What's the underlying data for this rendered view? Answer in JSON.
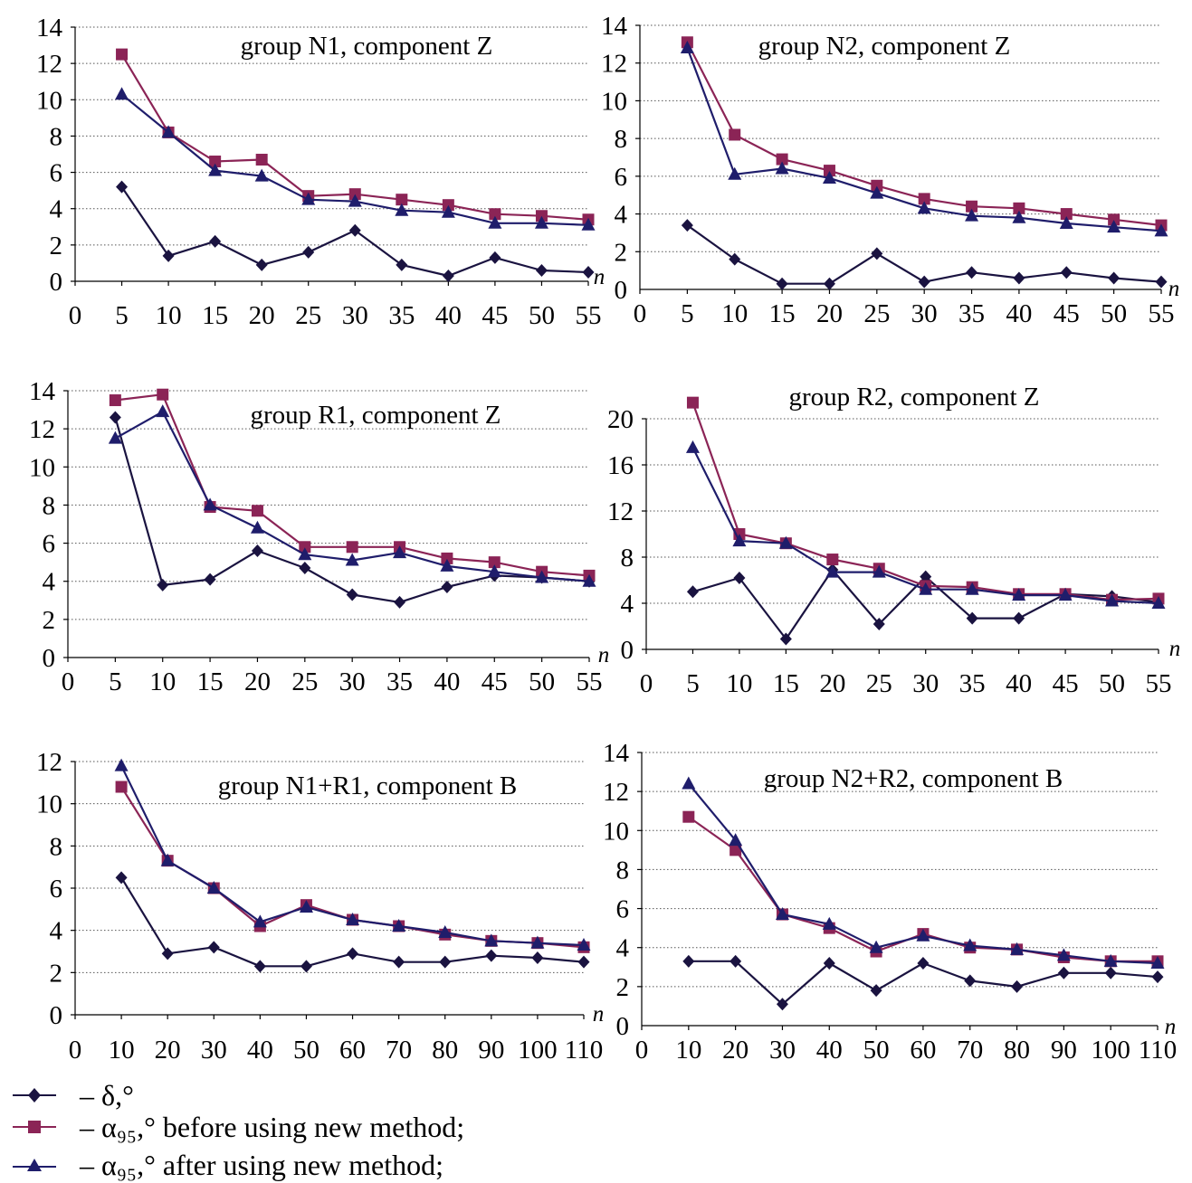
{
  "colors": {
    "delta": "#1a1340",
    "before": "#8b2456",
    "after": "#1f1d6b",
    "grid": "#555555",
    "axis": "#000000"
  },
  "legend": {
    "delta_label": "– δ,°",
    "before_label": "– α₉₅,° before using new method;",
    "after_label": "– α₉₅,° after using new method;"
  },
  "chart_data": [
    {
      "type": "line",
      "title": "group N1, component Z",
      "xlabel": "n",
      "ylabel": "",
      "xlim": [
        0,
        55
      ],
      "ylim": [
        0,
        14
      ],
      "xticks": [
        0,
        5,
        10,
        15,
        20,
        25,
        30,
        35,
        40,
        45,
        50,
        55
      ],
      "yticks": [
        0,
        2,
        4,
        6,
        8,
        10,
        12,
        14
      ],
      "grid": "horizontal dotted",
      "x": [
        5,
        10,
        15,
        20,
        25,
        30,
        35,
        40,
        45,
        50,
        55
      ],
      "series": [
        {
          "name": "δ,°",
          "marker": "diamond",
          "values": [
            5.2,
            1.4,
            2.2,
            0.9,
            1.6,
            2.8,
            0.9,
            0.3,
            1.3,
            0.6,
            0.5
          ]
        },
        {
          "name": "α₉₅,° before using new method",
          "marker": "square",
          "values": [
            12.5,
            8.2,
            6.6,
            6.7,
            4.7,
            4.8,
            4.5,
            4.2,
            3.7,
            3.6,
            3.4
          ]
        },
        {
          "name": "α₉₅,° after using new method",
          "marker": "triangle",
          "values": [
            10.3,
            8.2,
            6.1,
            5.8,
            4.5,
            4.4,
            3.9,
            3.8,
            3.2,
            3.2,
            3.1
          ]
        }
      ]
    },
    {
      "type": "line",
      "title": "group N2, component Z",
      "xlabel": "n",
      "ylabel": "",
      "xlim": [
        0,
        55
      ],
      "ylim": [
        0,
        14
      ],
      "xticks": [
        0,
        5,
        10,
        15,
        20,
        25,
        30,
        35,
        40,
        45,
        50,
        55
      ],
      "yticks": [
        2,
        4,
        6,
        8,
        10,
        12,
        14
      ],
      "bottom_tick_label": "0",
      "grid": "horizontal dotted",
      "x": [
        5,
        10,
        15,
        20,
        25,
        30,
        35,
        40,
        45,
        50,
        55
      ],
      "series": [
        {
          "name": "δ,°",
          "marker": "diamond",
          "values": [
            3.4,
            1.6,
            0.3,
            0.3,
            1.9,
            0.4,
            0.9,
            0.6,
            0.9,
            0.6,
            0.4
          ]
        },
        {
          "name": "α₉₅,° before using new method",
          "marker": "square",
          "values": [
            13.1,
            8.2,
            6.9,
            6.3,
            5.5,
            4.8,
            4.4,
            4.3,
            4.0,
            3.7,
            3.4
          ]
        },
        {
          "name": "α₉₅,° after using new method",
          "marker": "triangle",
          "values": [
            12.8,
            6.1,
            6.4,
            5.9,
            5.1,
            4.3,
            3.9,
            3.8,
            3.5,
            3.3,
            3.1
          ]
        }
      ]
    },
    {
      "type": "line",
      "title": "group R1, component Z",
      "xlabel": "n",
      "ylabel": "",
      "xlim": [
        0,
        55
      ],
      "ylim": [
        0,
        14
      ],
      "xticks": [
        0,
        5,
        10,
        15,
        20,
        25,
        30,
        35,
        40,
        45,
        50,
        55
      ],
      "yticks": [
        0,
        2,
        4,
        6,
        8,
        10,
        12,
        14
      ],
      "grid": "horizontal dotted",
      "x": [
        5,
        10,
        15,
        20,
        25,
        30,
        35,
        40,
        45,
        50,
        55
      ],
      "series": [
        {
          "name": "δ,°",
          "marker": "diamond",
          "values": [
            12.6,
            3.8,
            4.1,
            5.6,
            4.7,
            3.3,
            2.9,
            3.7,
            4.3,
            4.2,
            4.0
          ]
        },
        {
          "name": "α₉₅,° before using new method",
          "marker": "square",
          "values": [
            13.5,
            13.8,
            7.9,
            7.7,
            5.8,
            5.8,
            5.8,
            5.2,
            5.0,
            4.5,
            4.3
          ]
        },
        {
          "name": "α₉₅,° after using new method",
          "marker": "triangle",
          "values": [
            11.5,
            12.9,
            8.0,
            6.8,
            5.4,
            5.1,
            5.5,
            4.8,
            4.5,
            4.2,
            4.0
          ]
        }
      ]
    },
    {
      "type": "line",
      "title": "group R2, component Z",
      "xlabel": "n",
      "ylabel": "",
      "xlim": [
        0,
        55
      ],
      "ylim": [
        0,
        20
      ],
      "xticks": [
        0,
        5,
        10,
        15,
        20,
        25,
        30,
        35,
        40,
        45,
        50,
        55
      ],
      "yticks": [
        0,
        4,
        8,
        12,
        16,
        20
      ],
      "grid": "horizontal dotted",
      "x": [
        5,
        10,
        15,
        20,
        25,
        30,
        35,
        40,
        45,
        50,
        55
      ],
      "series": [
        {
          "name": "δ,°",
          "marker": "diamond",
          "values": [
            5.0,
            6.2,
            0.9,
            6.9,
            2.2,
            6.3,
            2.7,
            2.7,
            4.8,
            4.6,
            4.1
          ]
        },
        {
          "name": "α₉₅,° before using new method",
          "marker": "square",
          "values": [
            21.4,
            10.0,
            9.2,
            7.8,
            7.0,
            5.5,
            5.4,
            4.8,
            4.8,
            4.3,
            4.4
          ]
        },
        {
          "name": "α₉₅,° after using new method",
          "marker": "triangle",
          "values": [
            17.5,
            9.4,
            9.2,
            6.7,
            6.7,
            5.2,
            5.2,
            4.7,
            4.7,
            4.2,
            4.0
          ]
        }
      ]
    },
    {
      "type": "line",
      "title": "group N1+R1, component B",
      "xlabel": "n",
      "ylabel": "",
      "xlim": [
        0,
        110
      ],
      "ylim": [
        0,
        12
      ],
      "xticks": [
        0,
        10,
        20,
        30,
        40,
        50,
        60,
        70,
        80,
        90,
        100,
        110
      ],
      "yticks": [
        0,
        2,
        4,
        6,
        8,
        10,
        12
      ],
      "grid": "horizontal dotted",
      "x": [
        10,
        20,
        30,
        40,
        50,
        60,
        70,
        80,
        90,
        100,
        110
      ],
      "series": [
        {
          "name": "δ,°",
          "marker": "diamond",
          "values": [
            6.5,
            2.9,
            3.2,
            2.3,
            2.3,
            2.9,
            2.5,
            2.5,
            2.8,
            2.7,
            2.5
          ]
        },
        {
          "name": "α₉₅,° before using new method",
          "marker": "square",
          "values": [
            10.8,
            7.3,
            6.0,
            4.2,
            5.2,
            4.5,
            4.2,
            3.8,
            3.5,
            3.4,
            3.2
          ]
        },
        {
          "name": "α₉₅,° after using new method",
          "marker": "triangle",
          "values": [
            11.8,
            7.3,
            6.0,
            4.4,
            5.1,
            4.5,
            4.2,
            3.9,
            3.5,
            3.4,
            3.3
          ]
        }
      ]
    },
    {
      "type": "line",
      "title": "group N2+R2, component B",
      "xlabel": "n",
      "ylabel": "",
      "xlim": [
        0,
        110
      ],
      "ylim": [
        0,
        14
      ],
      "xticks": [
        0,
        10,
        20,
        30,
        40,
        50,
        60,
        70,
        80,
        90,
        100,
        110
      ],
      "yticks": [
        2,
        4,
        6,
        8,
        10,
        12,
        14
      ],
      "bottom_tick_label": "0",
      "grid": "horizontal dotted",
      "x": [
        10,
        20,
        30,
        40,
        50,
        60,
        70,
        80,
        90,
        100,
        110
      ],
      "series": [
        {
          "name": "δ,°",
          "marker": "diamond",
          "values": [
            3.3,
            3.3,
            1.1,
            3.2,
            1.8,
            3.2,
            2.3,
            2.0,
            2.7,
            2.7,
            2.5
          ]
        },
        {
          "name": "α₉₅,° before using new method",
          "marker": "square",
          "values": [
            10.7,
            9.0,
            5.7,
            5.0,
            3.8,
            4.7,
            4.0,
            3.9,
            3.5,
            3.3,
            3.3
          ]
        },
        {
          "name": "α₉₅,° after using new method",
          "marker": "triangle",
          "values": [
            12.4,
            9.5,
            5.7,
            5.2,
            4.0,
            4.6,
            4.1,
            3.9,
            3.6,
            3.3,
            3.2
          ]
        }
      ]
    }
  ]
}
